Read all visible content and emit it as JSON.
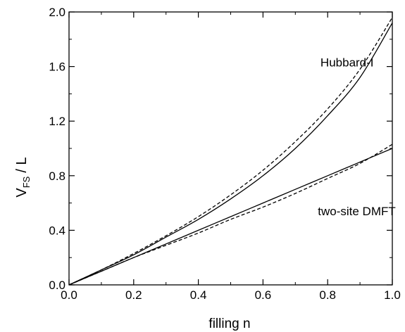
{
  "chart_data": {
    "type": "line",
    "xlabel": "filling  n",
    "ylabel_main": "V",
    "ylabel_sub": "FS",
    "ylabel_tail": "/ L",
    "xlim": [
      0.0,
      1.0
    ],
    "ylim": [
      0.0,
      2.0
    ],
    "grid": false,
    "xticks": [
      0.0,
      0.2,
      0.4,
      0.6,
      0.8,
      1.0
    ],
    "xtick_labels": [
      "0.0",
      "0.2",
      "0.4",
      "0.6",
      "0.8",
      "1.0"
    ],
    "yticks": [
      0.0,
      0.4,
      0.8,
      1.2,
      1.6,
      2.0
    ],
    "ytick_labels": [
      "0.0",
      "0.4",
      "0.8",
      "1.2",
      "1.6",
      "2.0"
    ],
    "annotations": [
      {
        "text": "Hubbard-I",
        "x": 0.86,
        "y": 1.6
      },
      {
        "text": "two-site DMFT",
        "x": 0.89,
        "y": 0.51
      }
    ],
    "series": [
      {
        "style": "solid",
        "x": [
          0.0,
          0.1,
          0.2,
          0.3,
          0.4,
          0.5,
          0.6,
          0.7,
          0.8,
          0.9,
          1.0
        ],
        "y": [
          0.0,
          0.11,
          0.22,
          0.35,
          0.48,
          0.63,
          0.8,
          1.0,
          1.24,
          1.52,
          1.92
        ]
      },
      {
        "style": "dashed",
        "x": [
          0.0,
          0.1,
          0.2,
          0.3,
          0.4,
          0.5,
          0.6,
          0.7,
          0.8,
          0.9,
          1.0
        ],
        "y": [
          0.0,
          0.11,
          0.23,
          0.36,
          0.5,
          0.66,
          0.84,
          1.05,
          1.29,
          1.58,
          1.96
        ]
      },
      {
        "style": "solid",
        "x": [
          0.0,
          0.1,
          0.2,
          0.3,
          0.4,
          0.5,
          0.6,
          0.7,
          0.8,
          0.9,
          1.0
        ],
        "y": [
          0.0,
          0.1,
          0.2,
          0.3,
          0.4,
          0.5,
          0.6,
          0.7,
          0.8,
          0.9,
          1.0
        ]
      },
      {
        "style": "dashed",
        "x": [
          0.0,
          0.1,
          0.2,
          0.3,
          0.4,
          0.5,
          0.6,
          0.7,
          0.8,
          0.9,
          1.0
        ],
        "y": [
          0.0,
          0.1,
          0.2,
          0.29,
          0.38,
          0.48,
          0.57,
          0.67,
          0.78,
          0.89,
          1.03
        ]
      }
    ]
  }
}
